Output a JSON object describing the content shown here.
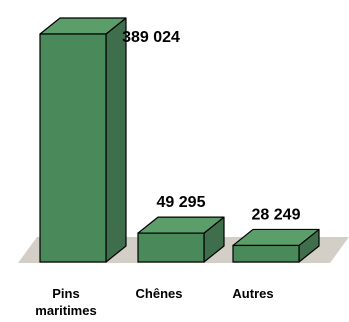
{
  "chart_data": {
    "type": "bar",
    "title": "",
    "xlabel": "",
    "ylabel": "",
    "categories": [
      "Pins maritimes",
      "Chênes",
      "Autres"
    ],
    "category_lines": [
      [
        "Pins",
        "maritimes"
      ],
      [
        "Chênes"
      ],
      [
        "Autres"
      ]
    ],
    "values": [
      389024,
      49295,
      28249
    ],
    "value_labels": [
      "389 024",
      "49 295",
      "28 249"
    ],
    "ylim": [
      0,
      389024
    ],
    "grid": false,
    "legend": "none",
    "colors": {
      "bar_front": "#4a8a5a",
      "bar_top": "#5c9e6a",
      "bar_side": "#3f6e4c",
      "floor": "#d4cfc6",
      "outline": "#000000"
    }
  }
}
